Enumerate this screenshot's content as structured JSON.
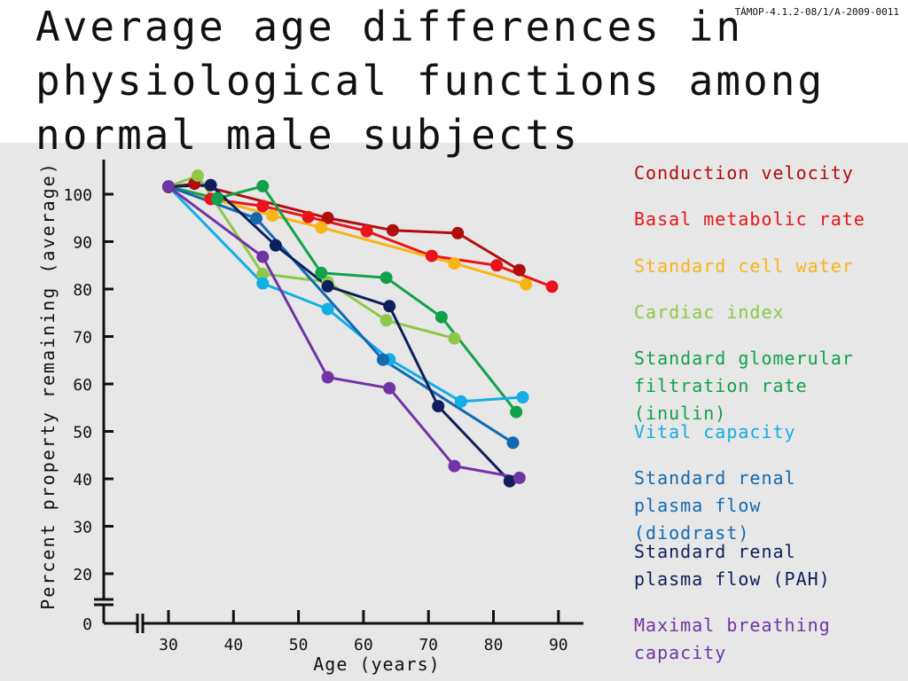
{
  "title": "Average age differences in physiological functions among normal male subjects",
  "doc_code": "TÁMOP-4.1.2-08/1/A-2009-0011",
  "chart_data": {
    "type": "line",
    "title": "Average age differences in physiological functions among normal male subjects",
    "xlabel": "Age (years)",
    "ylabel": "Percent property remaining (average)",
    "x_ticks": [
      30,
      40,
      50,
      60,
      70,
      80,
      90
    ],
    "x_tick_labels": [
      "30",
      "40",
      "50",
      "60",
      "70",
      "80",
      "90"
    ],
    "y_ticks": [
      0,
      20,
      30,
      40,
      50,
      60,
      70,
      80,
      90,
      100
    ],
    "y_tick_labels": [
      "0",
      "20",
      "30",
      "40",
      "50",
      "60",
      "70",
      "80",
      "90",
      "100"
    ],
    "xlim": [
      26,
      91
    ],
    "ylim": [
      0,
      104
    ],
    "axis_breaks": [
      "x",
      "y"
    ],
    "grid": false,
    "legend_position": "right",
    "series": [
      {
        "name": "Conduction velocity",
        "color": "#b00d0d",
        "points": [
          [
            30,
            101.5
          ],
          [
            34,
            102.2
          ],
          [
            54.5,
            95
          ],
          [
            64.5,
            92.4
          ],
          [
            74.5,
            91.8
          ],
          [
            84,
            84
          ]
        ]
      },
      {
        "name": "Basal metabolic rate",
        "color": "#e8141a",
        "points": [
          [
            36.5,
            99
          ],
          [
            44.5,
            97.5
          ],
          [
            51.5,
            95.2
          ],
          [
            60.5,
            92.2
          ],
          [
            70.5,
            87
          ],
          [
            80.5,
            85
          ],
          [
            89,
            80.5
          ]
        ]
      },
      {
        "name": "Standard cell water",
        "color": "#fbb316",
        "points": [
          [
            30,
            101.6
          ],
          [
            46,
            95.5
          ],
          [
            53.5,
            93
          ],
          [
            74,
            85.4
          ],
          [
            85,
            81
          ]
        ]
      },
      {
        "name": "Cardiac index",
        "color": "#8fc849",
        "points": [
          [
            30,
            101.6
          ],
          [
            34.5,
            103.9
          ],
          [
            44.5,
            83.2
          ],
          [
            54.5,
            81.5
          ],
          [
            63.5,
            73.4
          ],
          [
            74,
            69.6
          ]
        ]
      },
      {
        "name": "Standard glomerular filtration rate (inulin)",
        "color": "#12a14b",
        "points": [
          [
            30,
            101.6
          ],
          [
            37.5,
            99.1
          ],
          [
            44.5,
            101.7
          ],
          [
            53.5,
            83.4
          ],
          [
            63.5,
            82.4
          ],
          [
            72,
            74.1
          ],
          [
            83.5,
            54.1
          ]
        ]
      },
      {
        "name": "Vital capacity",
        "color": "#13aee4",
        "points": [
          [
            30,
            101.6
          ],
          [
            44.5,
            81.2
          ],
          [
            54.5,
            75.8
          ],
          [
            64,
            65.2
          ],
          [
            75,
            56.3
          ],
          [
            84.5,
            57.2
          ]
        ]
      },
      {
        "name": "Standard renal plasma flow (diodrast)",
        "color": "#1469b1",
        "points": [
          [
            30,
            101.6
          ],
          [
            43.5,
            94.9
          ],
          [
            63,
            65.1
          ],
          [
            83,
            47.6
          ]
        ]
      },
      {
        "name": "Standard renal plasma flow (PAH)",
        "color": "#0f1f5c",
        "points": [
          [
            30,
            101.6
          ],
          [
            36.5,
            101.9
          ],
          [
            46.5,
            89.2
          ],
          [
            54.5,
            80.6
          ],
          [
            64,
            76.4
          ],
          [
            71.5,
            55.3
          ],
          [
            82.5,
            39.5
          ]
        ]
      },
      {
        "name": "Maximal breathing capacity",
        "color": "#7034a5",
        "points": [
          [
            30,
            101.6
          ],
          [
            44.5,
            86.8
          ],
          [
            54.5,
            61.4
          ],
          [
            64,
            59.1
          ],
          [
            74,
            42.7
          ],
          [
            84,
            40.2
          ]
        ]
      }
    ]
  },
  "legend_labels": {
    "conduction_velocity": "Conduction velocity",
    "basal_metabolic_rate": "Basal metabolic rate",
    "standard_cell_water": "Standard cell water",
    "cardiac_index": "Cardiac index",
    "gfr": "Standard glomerular filtration rate (inulin)",
    "vital_capacity": "Vital capacity",
    "rpf_diodrast": "Standard renal plasma flow (diodrast)",
    "rpf_pah": "Standard renal plasma flow (PAH)",
    "mbc": "Maximal breathing capacity"
  }
}
